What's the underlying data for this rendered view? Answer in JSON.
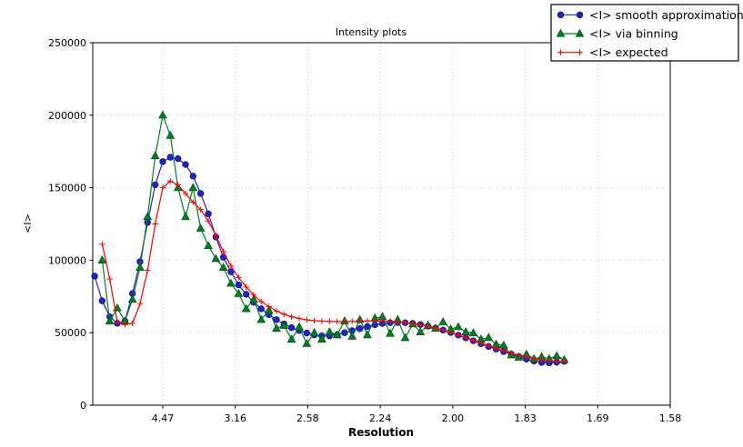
{
  "chart_data": {
    "type": "line",
    "title": "Intensity plots",
    "xlabel": "Resolution",
    "ylabel": "<I>",
    "grid": true,
    "grid_style": "dotted",
    "legend_position": "upper right",
    "background_color": "#ffffff",
    "axis_color": "#000000",
    "grid_color": "#c9c9c9",
    "x_axis": {
      "unit": "1/d^2 (labels shown as d in Angstrom)",
      "range": [
        0.0017,
        0.4
      ],
      "ticks": [
        {
          "pos": 0.05,
          "label": "4.47"
        },
        {
          "pos": 0.1,
          "label": "3.16"
        },
        {
          "pos": 0.15,
          "label": "2.58"
        },
        {
          "pos": 0.2,
          "label": "2.24"
        },
        {
          "pos": 0.25,
          "label": "2.00"
        },
        {
          "pos": 0.3,
          "label": "1.83"
        },
        {
          "pos": 0.35,
          "label": "1.69"
        },
        {
          "pos": 0.4,
          "label": "1.58"
        }
      ]
    },
    "y_axis": {
      "range": [
        0,
        250000
      ],
      "ticks": [
        {
          "pos": 0,
          "label": "0"
        },
        {
          "pos": 50000,
          "label": "50000"
        },
        {
          "pos": 100000,
          "label": "100000"
        },
        {
          "pos": 150000,
          "label": "150000"
        },
        {
          "pos": 200000,
          "label": "200000"
        },
        {
          "pos": 250000,
          "label": "250000"
        }
      ]
    },
    "series": [
      {
        "name": "<I> smooth approximation",
        "color": "#2222cc",
        "edge_color": "#15158a",
        "marker": "circle",
        "x": [
          0.003,
          0.0082,
          0.0134,
          0.0186,
          0.0239,
          0.0291,
          0.0343,
          0.0395,
          0.0448,
          0.05,
          0.0552,
          0.0605,
          0.0657,
          0.0709,
          0.0761,
          0.0814,
          0.0866,
          0.0918,
          0.097,
          0.1023,
          0.1075,
          0.1127,
          0.1179,
          0.1232,
          0.1284,
          0.1336,
          0.1388,
          0.1441,
          0.1493,
          0.1545,
          0.1597,
          0.165,
          0.1702,
          0.1754,
          0.1806,
          0.1859,
          0.1911,
          0.1963,
          0.2015,
          0.2068,
          0.212,
          0.2172,
          0.2224,
          0.2277,
          0.2329,
          0.2381,
          0.2433,
          0.2486,
          0.2538,
          0.259,
          0.2642,
          0.2695,
          0.2747,
          0.2799,
          0.2851,
          0.2904,
          0.2956,
          0.3008,
          0.306,
          0.3113,
          0.3165,
          0.3217,
          0.3269
        ],
        "y": [
          89000,
          72000,
          61000,
          56500,
          58000,
          77000,
          99000,
          126000,
          152000,
          168000,
          171000,
          170000,
          166000,
          158000,
          146000,
          132000,
          116000,
          102000,
          92000,
          83000,
          76500,
          71000,
          66500,
          62500,
          59000,
          56000,
          53500,
          51500,
          49800,
          48500,
          47800,
          47800,
          48500,
          50000,
          51400,
          52800,
          54200,
          55500,
          56400,
          56900,
          57100,
          56900,
          56400,
          55600,
          54500,
          53200,
          51800,
          50100,
          48300,
          46400,
          44400,
          42400,
          40500,
          38700,
          37000,
          35200,
          33500,
          31800,
          30500,
          29500,
          29200,
          29600,
          30200
        ]
      },
      {
        "name": "<I> via binning",
        "color": "#008022",
        "edge_color": "#00551a",
        "marker": "triangle-up",
        "x": [
          0.0082,
          0.0134,
          0.0186,
          0.0239,
          0.0291,
          0.0343,
          0.0395,
          0.0448,
          0.05,
          0.0552,
          0.0605,
          0.0657,
          0.0709,
          0.0761,
          0.0814,
          0.0866,
          0.0918,
          0.097,
          0.1023,
          0.1075,
          0.1127,
          0.1179,
          0.1232,
          0.1284,
          0.1336,
          0.1388,
          0.1441,
          0.1493,
          0.1545,
          0.1597,
          0.165,
          0.1702,
          0.1754,
          0.1806,
          0.1859,
          0.1911,
          0.1963,
          0.2015,
          0.2068,
          0.212,
          0.2172,
          0.2224,
          0.2277,
          0.2329,
          0.2381,
          0.2433,
          0.2486,
          0.2538,
          0.259,
          0.2642,
          0.2695,
          0.2747,
          0.2799,
          0.2851,
          0.2904,
          0.2956,
          0.3008,
          0.306,
          0.3113,
          0.3165,
          0.3217,
          0.3269
        ],
        "y": [
          100000,
          58000,
          67000,
          58000,
          73000,
          95000,
          130000,
          172000,
          200000,
          186000,
          150000,
          130000,
          150000,
          122000,
          110000,
          101000,
          95000,
          84000,
          77000,
          66500,
          73000,
          59000,
          65500,
          53000,
          55000,
          45500,
          54000,
          42500,
          50000,
          45500,
          50500,
          48500,
          58000,
          47500,
          59000,
          48500,
          60000,
          61000,
          49500,
          59000,
          46500,
          56000,
          50500,
          55000,
          53000,
          57500,
          52500,
          54000,
          50500,
          49800,
          45500,
          46600,
          42000,
          41300,
          34600,
          33000,
          35100,
          32000,
          33400,
          32000,
          34000,
          31300
        ]
      },
      {
        "name": "<I> expected",
        "color": "#ff0000",
        "edge_color": "#ff0000",
        "marker": "plus",
        "x": [
          0.0082,
          0.0134,
          0.0186,
          0.0239,
          0.0291,
          0.0343,
          0.0395,
          0.0448,
          0.05,
          0.0552,
          0.0605,
          0.0657,
          0.0709,
          0.0761,
          0.0814,
          0.0866,
          0.0918,
          0.097,
          0.1023,
          0.1075,
          0.1127,
          0.1179,
          0.1232,
          0.1284,
          0.1336,
          0.1388,
          0.1441,
          0.1493,
          0.1545,
          0.1597,
          0.165,
          0.1702,
          0.1754,
          0.1806,
          0.1859,
          0.1911,
          0.1963,
          0.2015,
          0.2068,
          0.212,
          0.2172,
          0.2224,
          0.2277,
          0.2329,
          0.2381,
          0.2433,
          0.2486,
          0.2538,
          0.259,
          0.2642,
          0.2695,
          0.2747,
          0.2799,
          0.2851,
          0.2904,
          0.2956,
          0.3008,
          0.306,
          0.3113,
          0.3165,
          0.3217,
          0.3269
        ],
        "y": [
          111000,
          87000,
          57500,
          55500,
          56500,
          70000,
          93000,
          125000,
          150000,
          154500,
          152000,
          146000,
          140000,
          135000,
          127000,
          117000,
          106000,
          96000,
          88000,
          81500,
          76000,
          71500,
          68000,
          65000,
          62800,
          61000,
          59800,
          58900,
          58300,
          58000,
          57800,
          57700,
          57700,
          57800,
          58000,
          58100,
          58200,
          58100,
          57900,
          57500,
          57000,
          56300,
          55400,
          54300,
          53100,
          51700,
          50200,
          48500,
          46700,
          44800,
          42900,
          41000,
          39200,
          37500,
          35900,
          34500,
          33200,
          32100,
          31300,
          30700,
          30300,
          30200
        ]
      }
    ]
  }
}
